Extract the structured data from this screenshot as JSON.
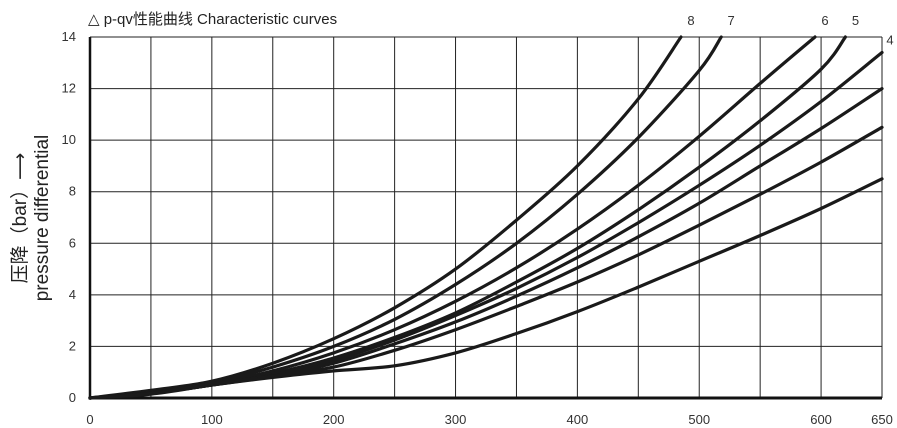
{
  "chart_data": {
    "type": "line",
    "title": "△ p-qv性能曲线 Characteristic curves",
    "ylabel_line1": "压降（bar）⟶",
    "ylabel_line2": "pressure differential",
    "xlabel": "",
    "xlim": [
      0,
      650
    ],
    "ylim": [
      0,
      14
    ],
    "x_ticks": [
      0,
      100,
      200,
      300,
      400,
      500,
      600,
      650
    ],
    "y_ticks": [
      0,
      2,
      4,
      6,
      8,
      10,
      12,
      14
    ],
    "grid": true,
    "series": [
      {
        "name": "8",
        "points": [
          [
            0,
            0
          ],
          [
            50,
            0.3
          ],
          [
            100,
            0.65
          ],
          [
            150,
            1.35
          ],
          [
            200,
            2.3
          ],
          [
            250,
            3.5
          ],
          [
            300,
            5.0
          ],
          [
            350,
            6.9
          ],
          [
            400,
            9.0
          ],
          [
            450,
            11.6
          ],
          [
            485,
            14
          ]
        ]
      },
      {
        "name": "7",
        "points": [
          [
            0,
            0
          ],
          [
            50,
            0.25
          ],
          [
            100,
            0.6
          ],
          [
            150,
            1.2
          ],
          [
            200,
            2.0
          ],
          [
            250,
            3.05
          ],
          [
            300,
            4.4
          ],
          [
            350,
            6.0
          ],
          [
            400,
            7.9
          ],
          [
            450,
            10.1
          ],
          [
            500,
            12.7
          ],
          [
            518,
            14
          ]
        ]
      },
      {
        "name": "6",
        "points": [
          [
            0,
            0
          ],
          [
            50,
            0.22
          ],
          [
            100,
            0.55
          ],
          [
            150,
            1.05
          ],
          [
            200,
            1.75
          ],
          [
            250,
            2.65
          ],
          [
            300,
            3.75
          ],
          [
            350,
            5.05
          ],
          [
            400,
            6.55
          ],
          [
            450,
            8.25
          ],
          [
            500,
            10.15
          ],
          [
            550,
            12.2
          ],
          [
            595,
            14
          ]
        ]
      },
      {
        "name": "5",
        "points": [
          [
            0,
            0
          ],
          [
            50,
            0.2
          ],
          [
            100,
            0.5
          ],
          [
            150,
            0.95
          ],
          [
            200,
            1.55
          ],
          [
            250,
            2.35
          ],
          [
            300,
            3.3
          ],
          [
            350,
            4.5
          ],
          [
            400,
            5.8
          ],
          [
            450,
            7.3
          ],
          [
            500,
            8.95
          ],
          [
            550,
            10.75
          ],
          [
            600,
            12.75
          ],
          [
            620,
            14
          ]
        ]
      },
      {
        "name": "4",
        "points": [
          [
            0,
            0
          ],
          [
            50,
            0.18
          ],
          [
            100,
            0.5
          ],
          [
            150,
            0.9
          ],
          [
            200,
            1.45
          ],
          [
            250,
            2.25
          ],
          [
            300,
            3.2
          ],
          [
            350,
            4.25
          ],
          [
            400,
            5.45
          ],
          [
            450,
            6.8
          ],
          [
            500,
            8.25
          ],
          [
            550,
            9.8
          ],
          [
            600,
            11.5
          ],
          [
            650,
            13.4
          ]
        ]
      },
      {
        "name": "",
        "points": [
          [
            0,
            0
          ],
          [
            50,
            0.18
          ],
          [
            100,
            0.5
          ],
          [
            150,
            0.85
          ],
          [
            200,
            1.35
          ],
          [
            250,
            2.1
          ],
          [
            300,
            2.95
          ],
          [
            350,
            3.95
          ],
          [
            400,
            5.05
          ],
          [
            450,
            6.25
          ],
          [
            500,
            7.55
          ],
          [
            550,
            9.0
          ],
          [
            600,
            10.45
          ],
          [
            650,
            12.0
          ]
        ]
      },
      {
        "name": "",
        "points": [
          [
            0,
            0
          ],
          [
            50,
            0.18
          ],
          [
            100,
            0.55
          ],
          [
            150,
            0.85
          ],
          [
            200,
            1.2
          ],
          [
            250,
            1.85
          ],
          [
            300,
            2.65
          ],
          [
            350,
            3.55
          ],
          [
            400,
            4.5
          ],
          [
            450,
            5.55
          ],
          [
            500,
            6.7
          ],
          [
            550,
            7.9
          ],
          [
            600,
            9.15
          ],
          [
            650,
            10.5
          ]
        ]
      },
      {
        "name": "",
        "points": [
          [
            0,
            0
          ],
          [
            50,
            0.15
          ],
          [
            100,
            0.5
          ],
          [
            150,
            0.8
          ],
          [
            200,
            1.05
          ],
          [
            250,
            1.25
          ],
          [
            300,
            1.75
          ],
          [
            350,
            2.5
          ],
          [
            400,
            3.35
          ],
          [
            450,
            4.3
          ],
          [
            500,
            5.3
          ],
          [
            550,
            6.3
          ],
          [
            600,
            7.35
          ],
          [
            650,
            8.5
          ]
        ]
      }
    ]
  }
}
